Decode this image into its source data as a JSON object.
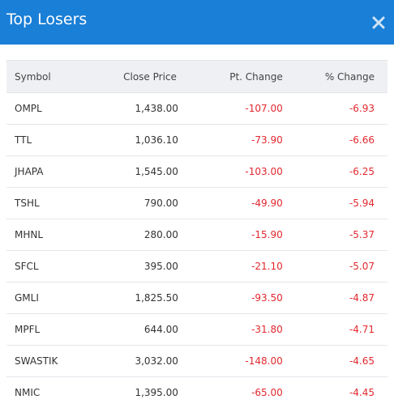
{
  "header": {
    "title": "Top Losers"
  },
  "table": {
    "columns": [
      "Symbol",
      "Close Price",
      "Pt. Change",
      "% Change"
    ],
    "rows": [
      [
        "OMPL",
        "1,438.00",
        "-107.00",
        "-6.93"
      ],
      [
        "TTL",
        "1,036.10",
        "-73.90",
        "-6.66"
      ],
      [
        "JHAPA",
        "1,545.00",
        "-103.00",
        "-6.25"
      ],
      [
        "TSHL",
        "790.00",
        "-49.90",
        "-5.94"
      ],
      [
        "MHNL",
        "280.00",
        "-15.90",
        "-5.37"
      ],
      [
        "SFCL",
        "395.00",
        "-21.10",
        "-5.07"
      ],
      [
        "GMLI",
        "1,825.50",
        "-93.50",
        "-4.87"
      ],
      [
        "MPFL",
        "644.00",
        "-31.80",
        "-4.71"
      ],
      [
        "SWASTIK",
        "3,032.00",
        "-148.00",
        "-4.65"
      ],
      [
        "NMIC",
        "1,395.00",
        "-65.00",
        "-4.45"
      ]
    ]
  }
}
